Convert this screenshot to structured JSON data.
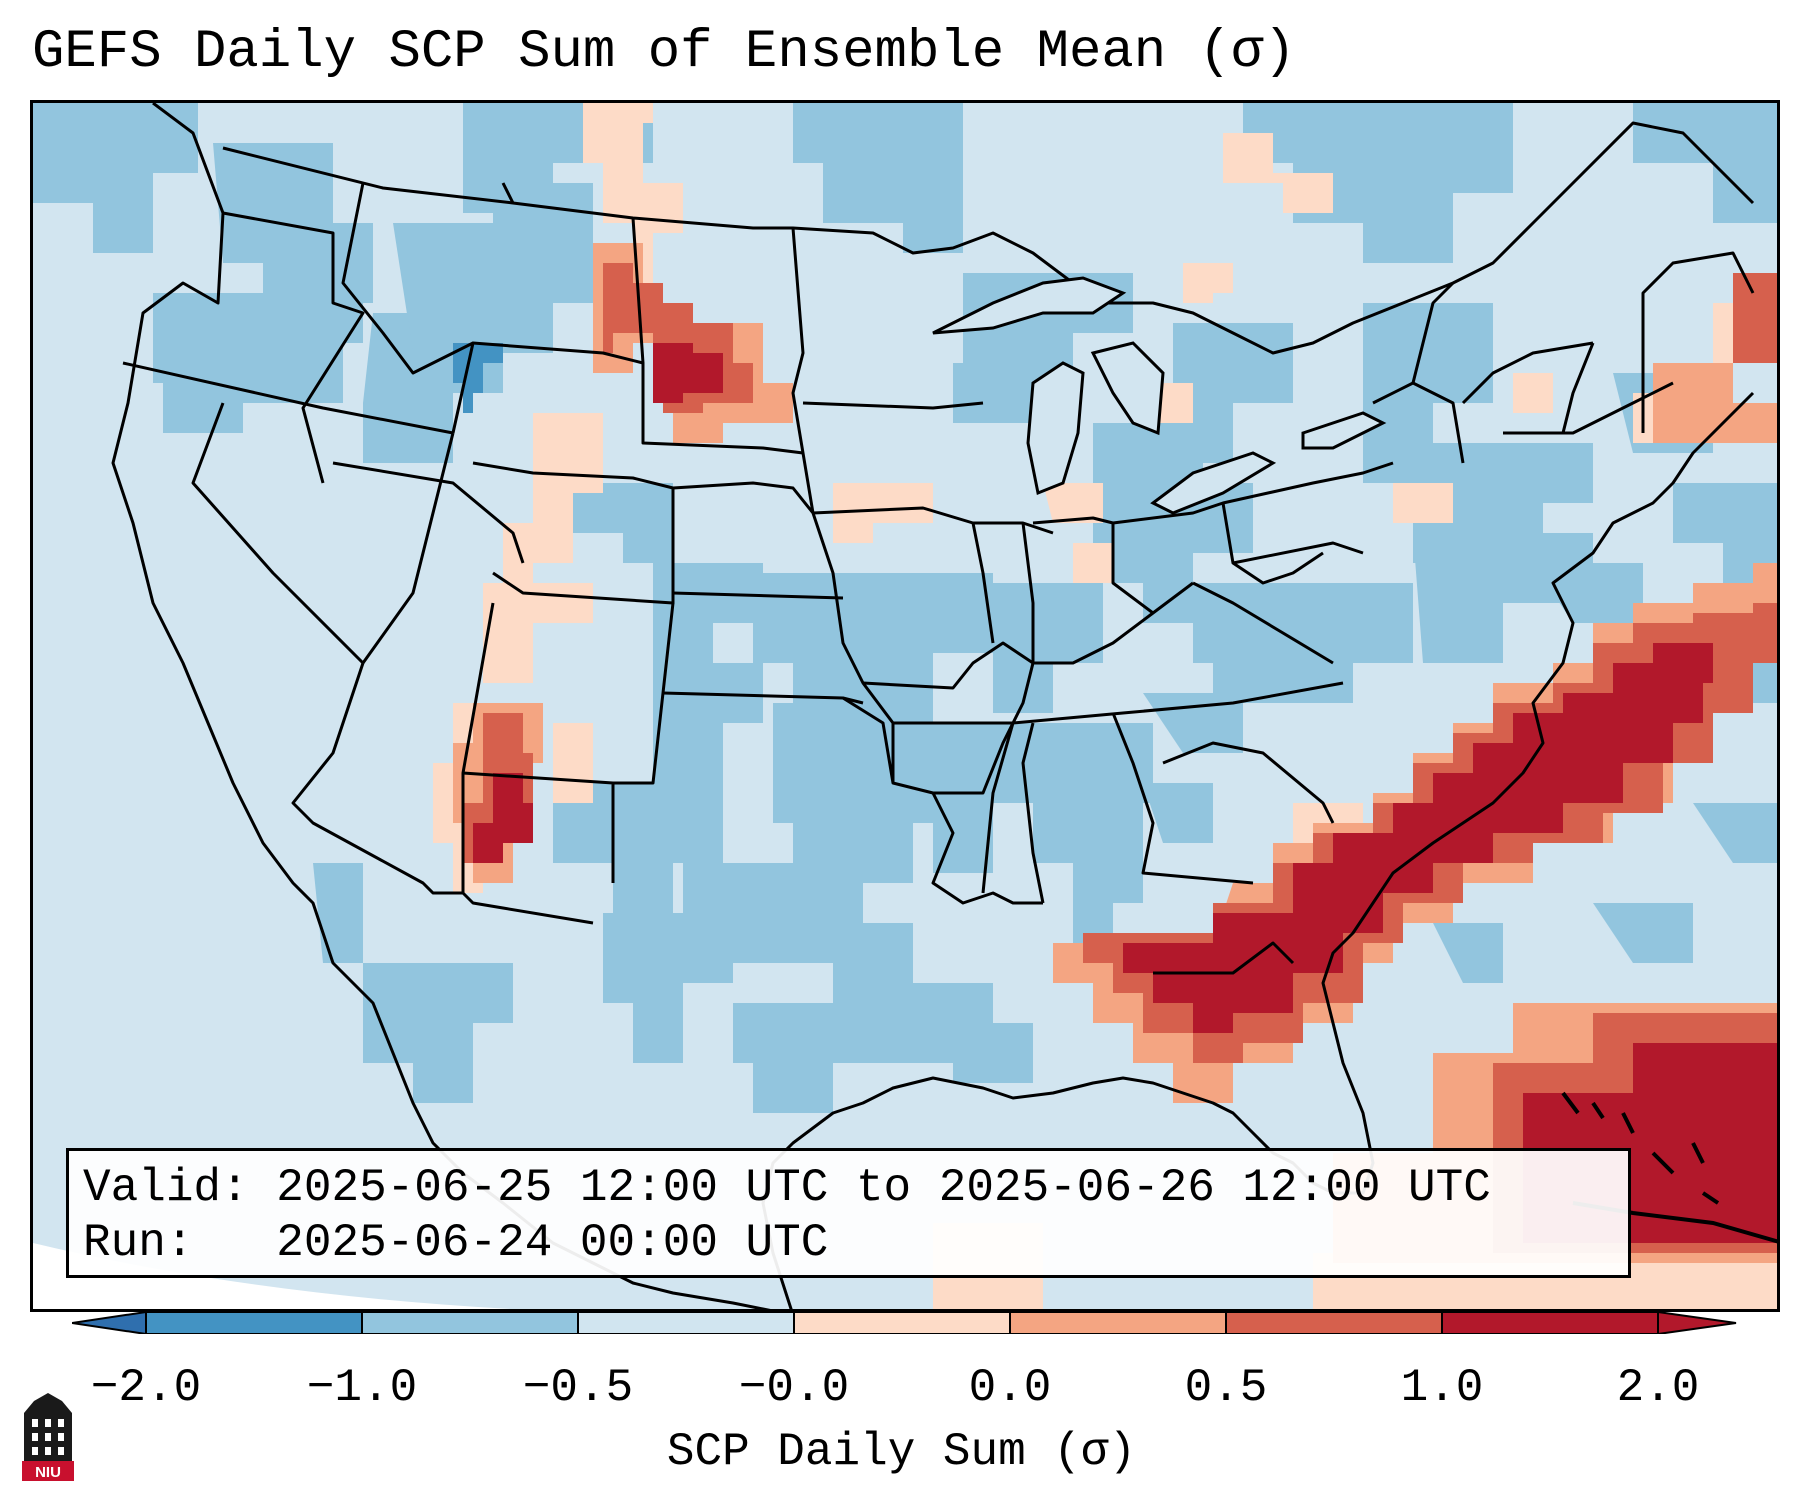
{
  "title": "GEFS Daily SCP Sum of Ensemble Mean (σ)",
  "info": {
    "valid_label": "Valid:",
    "valid_value": "2025-06-25 12:00 UTC to 2025-06-26 12:00 UTC",
    "run_label": "Run:",
    "run_value": "2025-06-24 00:00 UTC"
  },
  "colorbar": {
    "label": "SCP Daily Sum (σ)",
    "ticks": [
      "−2.0",
      "−1.0",
      "−0.5",
      "−0.0",
      "0.0",
      "0.5",
      "1.0",
      "2.0"
    ],
    "colors": [
      "#4393c3",
      "#92c5de",
      "#d1e5f0",
      "#fddbc7",
      "#f4a582",
      "#d6604d",
      "#b2182b"
    ],
    "extend_low_color": "#2f6fae",
    "extend_high_color": "#b2182b"
  },
  "logo": {
    "text": "NIU"
  },
  "map": {
    "region": "Continental United States",
    "anomaly_areas": [
      {
        "name": "Southeast Atlantic coast and Georgia/South Carolina",
        "sigma": "1.0 to 2.0"
      },
      {
        "name": "Florida panhandle and north Florida",
        "sigma": "1.0 to 2.0"
      },
      {
        "name": "Bahamas / Western Atlantic",
        "sigma": "1.0 to 2.0"
      },
      {
        "name": "Western South Dakota / NE Wyoming",
        "sigma": "1.0 to 2.0"
      },
      {
        "name": "New Mexico",
        "sigma": "1.0 to 2.0"
      },
      {
        "name": "Gulf of Maine offshore",
        "sigma": "0.5 to 2.0"
      }
    ]
  }
}
